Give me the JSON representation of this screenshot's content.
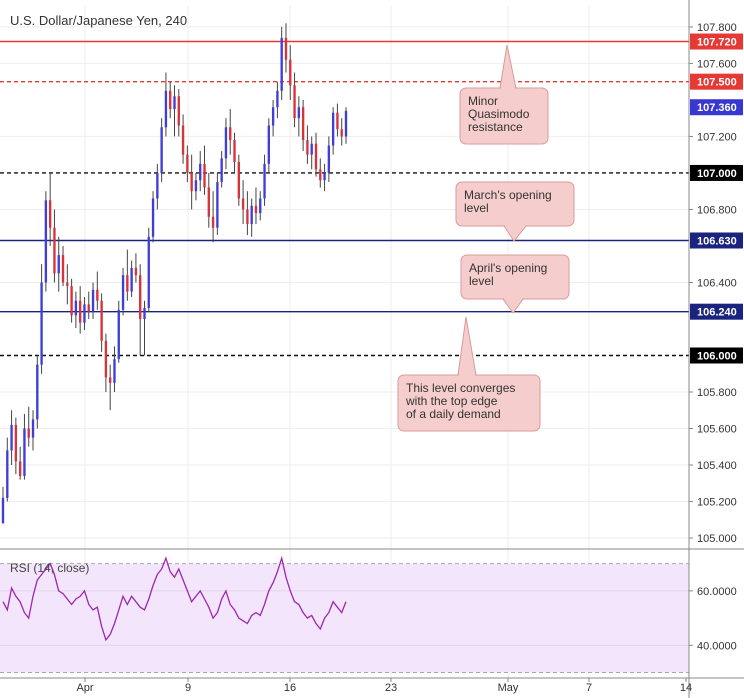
{
  "chart_data": [
    {
      "type": "candlestick",
      "title": "U.S. Dollar/Japanese Yen, 240",
      "y_ticks": [
        "105.000",
        "105.200",
        "105.400",
        "105.600",
        "105.800",
        "106.400",
        "106.800",
        "107.200",
        "107.600",
        "107.800"
      ],
      "ylim": [
        104.94,
        107.92
      ],
      "x_ticks": [
        "Apr",
        "9",
        "16",
        "23",
        "May",
        "7",
        "14"
      ],
      "grid": true,
      "colors": {
        "up": "#3f3fd8",
        "down": "#d8323a",
        "wick": "#444444"
      },
      "levels": [
        {
          "value": 107.72,
          "label": "107.720",
          "line_color": "#e53935",
          "style": "solid",
          "tag_color": "#e53935"
        },
        {
          "value": 107.5,
          "label": "107.500",
          "line_color": "#e53935",
          "style": "dashed",
          "tag_color": "#e53935"
        },
        {
          "value": 107.36,
          "label": "107.360",
          "line_color": "",
          "style": "none",
          "tag_color": "#3838d0"
        },
        {
          "value": 107.0,
          "label": "107.000",
          "line_color": "#111111",
          "style": "dashed",
          "tag_color": "#000000"
        },
        {
          "value": 106.63,
          "label": "106.630",
          "line_color": "#1a237e",
          "style": "solid",
          "tag_color": "#1a237e"
        },
        {
          "value": 106.24,
          "label": "106.240",
          "line_color": "#1a237e",
          "style": "solid",
          "tag_color": "#1a237e"
        },
        {
          "value": 106.0,
          "label": "106.000",
          "line_color": "#111111",
          "style": "dashed",
          "tag_color": "#000000"
        }
      ],
      "annotations": [
        {
          "lines": [
            "Minor",
            "Quasimodo",
            "resistance"
          ],
          "points_to": 107.72
        },
        {
          "lines": [
            "March's opening",
            "level"
          ],
          "points_to": 106.63
        },
        {
          "lines": [
            "April's opening",
            "level"
          ],
          "points_to": 106.24
        },
        {
          "lines": [
            "This level converges",
            "with the top edge",
            "of a daily demand"
          ],
          "points_to": 106.24
        }
      ],
      "series": [
        {
          "ohlc": [
            [
              105.08,
              105.28,
              105.08,
              105.22
            ],
            [
              105.22,
              105.55,
              105.2,
              105.48
            ],
            [
              105.48,
              105.7,
              105.4,
              105.62
            ],
            [
              105.62,
              105.66,
              105.35,
              105.42
            ],
            [
              105.42,
              105.5,
              105.32,
              105.34
            ],
            [
              105.34,
              105.68,
              105.32,
              105.6
            ],
            [
              105.6,
              105.72,
              105.5,
              105.55
            ],
            [
              105.55,
              105.7,
              105.48,
              105.65
            ],
            [
              105.65,
              106.0,
              105.6,
              105.95
            ],
            [
              105.95,
              106.5,
              105.9,
              106.4
            ],
            [
              106.4,
              106.9,
              106.35,
              106.85
            ],
            [
              106.85,
              107.0,
              106.6,
              106.7
            ],
            [
              106.7,
              106.8,
              106.4,
              106.45
            ],
            [
              106.45,
              106.65,
              106.35,
              106.55
            ],
            [
              106.55,
              106.6,
              106.38,
              106.4
            ],
            [
              106.4,
              106.5,
              106.28,
              106.38
            ],
            [
              106.38,
              106.42,
              106.18,
              106.22
            ],
            [
              106.22,
              106.35,
              106.15,
              106.3
            ],
            [
              106.3,
              106.38,
              106.12,
              106.18
            ],
            [
              106.18,
              106.32,
              106.14,
              106.28
            ],
            [
              106.28,
              106.35,
              106.2,
              106.24
            ],
            [
              106.24,
              106.4,
              106.2,
              106.36
            ],
            [
              106.36,
              106.46,
              106.25,
              106.3
            ],
            [
              106.3,
              106.34,
              106.02,
              106.08
            ],
            [
              106.08,
              106.12,
              105.8,
              105.88
            ],
            [
              105.88,
              105.95,
              105.7,
              105.85
            ],
            [
              105.85,
              106.05,
              105.8,
              105.98
            ],
            [
              105.98,
              106.3,
              105.96,
              106.25
            ],
            [
              106.25,
              106.48,
              106.22,
              106.44
            ],
            [
              106.44,
              106.58,
              106.3,
              106.35
            ],
            [
              106.35,
              106.52,
              106.32,
              106.48
            ],
            [
              106.48,
              106.56,
              106.4,
              106.44
            ],
            [
              106.44,
              106.5,
              106.0,
              106.2
            ],
            [
              106.2,
              106.3,
              106.0,
              106.26
            ],
            [
              106.26,
              106.7,
              106.24,
              106.65
            ],
            [
              106.65,
              106.9,
              106.62,
              106.86
            ],
            [
              106.86,
              107.05,
              106.8,
              107.0
            ],
            [
              107.0,
              107.3,
              106.95,
              107.25
            ],
            [
              107.25,
              107.55,
              107.2,
              107.45
            ],
            [
              107.45,
              107.5,
              107.3,
              107.35
            ],
            [
              107.35,
              107.48,
              107.2,
              107.42
            ],
            [
              107.42,
              107.46,
              107.2,
              107.26
            ],
            [
              107.26,
              107.32,
              107.05,
              107.1
            ],
            [
              107.1,
              107.15,
              106.95,
              107.0
            ],
            [
              107.0,
              107.1,
              106.8,
              106.9
            ],
            [
              106.9,
              107.0,
              106.85,
              106.96
            ],
            [
              106.96,
              107.12,
              106.9,
              107.05
            ],
            [
              107.05,
              107.15,
              106.88,
              106.92
            ],
            [
              106.92,
              107.0,
              106.7,
              106.76
            ],
            [
              106.76,
              106.9,
              106.62,
              106.7
            ],
            [
              106.7,
              107.0,
              106.66,
              106.95
            ],
            [
              106.95,
              107.12,
              106.92,
              107.08
            ],
            [
              107.08,
              107.3,
              107.02,
              107.25
            ],
            [
              107.25,
              107.35,
              107.1,
              107.18
            ],
            [
              107.18,
              107.22,
              107.0,
              107.06
            ],
            [
              107.06,
              107.1,
              106.82,
              106.86
            ],
            [
              106.86,
              106.96,
              106.72,
              106.8
            ],
            [
              106.8,
              106.9,
              106.66,
              106.72
            ],
            [
              106.72,
              106.86,
              106.65,
              106.82
            ],
            [
              106.82,
              106.92,
              106.72,
              106.78
            ],
            [
              106.78,
              106.9,
              106.74,
              106.86
            ],
            [
              106.86,
              107.1,
              106.82,
              107.05
            ],
            [
              107.05,
              107.3,
              107.0,
              107.26
            ],
            [
              107.26,
              107.4,
              107.2,
              107.36
            ],
            [
              107.36,
              107.5,
              107.3,
              107.45
            ],
            [
              107.45,
              107.8,
              107.4,
              107.74
            ],
            [
              107.74,
              107.82,
              107.55,
              107.62
            ],
            [
              107.62,
              107.7,
              107.4,
              107.48
            ],
            [
              107.48,
              107.55,
              107.25,
              107.3
            ],
            [
              107.3,
              107.42,
              107.2,
              107.36
            ],
            [
              107.36,
              107.4,
              107.12,
              107.18
            ],
            [
              107.18,
              107.26,
              107.05,
              107.1
            ],
            [
              107.1,
              107.2,
              107.02,
              107.16
            ],
            [
              107.16,
              107.22,
              106.98,
              107.02
            ],
            [
              107.02,
              107.08,
              106.92,
              106.96
            ],
            [
              106.96,
              107.05,
              106.9,
              107.0
            ],
            [
              107.0,
              107.2,
              106.95,
              107.15
            ],
            [
              107.15,
              107.36,
              107.1,
              107.33
            ],
            [
              107.33,
              107.38,
              107.2,
              107.24
            ],
            [
              107.24,
              107.3,
              107.15,
              107.2
            ],
            [
              107.2,
              107.36,
              107.16,
              107.34
            ]
          ]
        }
      ]
    },
    {
      "type": "line",
      "title": "RSI (14, close)",
      "y_ticks": [
        "40.0000",
        "60.0000"
      ],
      "ylim": [
        28,
        75
      ],
      "bands": [
        70,
        30
      ],
      "band_fill": "#f3e5fb",
      "series": [
        {
          "values": [
            56,
            53,
            61,
            58,
            56,
            52,
            50,
            58,
            64,
            66,
            68,
            70,
            66,
            60,
            59,
            57,
            55,
            57,
            58,
            60,
            55,
            53,
            54,
            47,
            42,
            44,
            48,
            53,
            58,
            55,
            58,
            56,
            54,
            53,
            57,
            62,
            66,
            68,
            72,
            67,
            65,
            68,
            64,
            60,
            56,
            58,
            60,
            57,
            54,
            50,
            52,
            57,
            60,
            55,
            53,
            50,
            49,
            48,
            51,
            52,
            51,
            55,
            60,
            63,
            67,
            72,
            65,
            60,
            56,
            55,
            52,
            50,
            51,
            48,
            46,
            50,
            52,
            56,
            54,
            52,
            56
          ]
        }
      ]
    }
  ]
}
